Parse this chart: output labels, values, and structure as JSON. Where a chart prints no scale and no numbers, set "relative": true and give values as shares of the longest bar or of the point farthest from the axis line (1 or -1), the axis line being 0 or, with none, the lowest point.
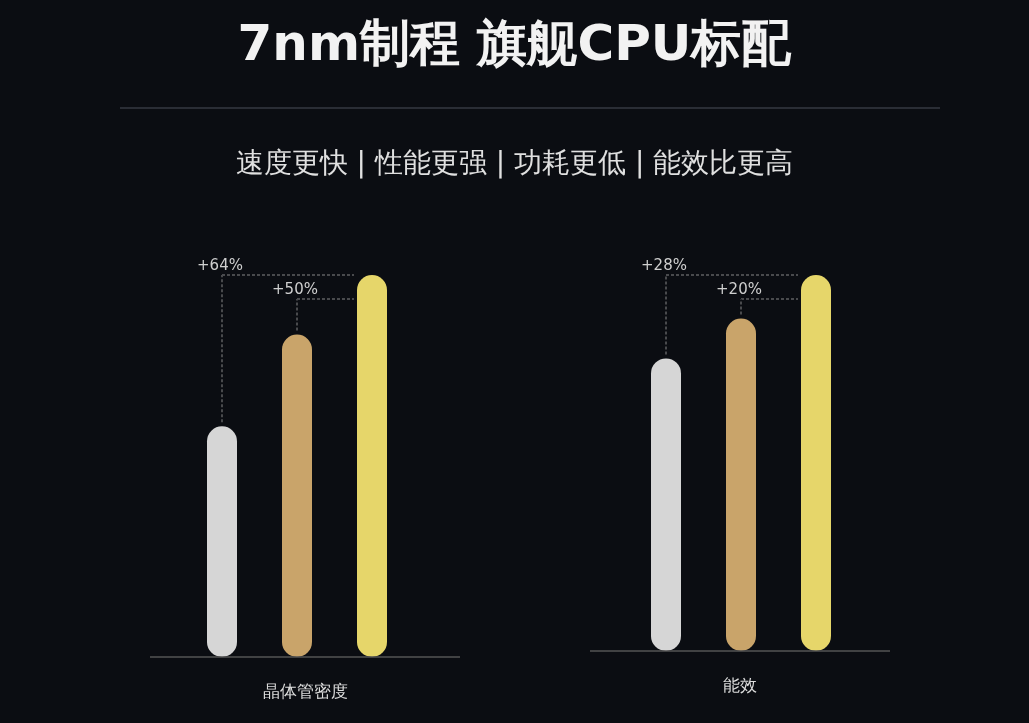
{
  "chart_data": [
    {
      "type": "bar",
      "title": "7nm制程  旗舰CPU标配",
      "subtitle": "速度更快 | 性能更强 | 功耗更低 | 能效比更高",
      "xlabel": "晶体管密度",
      "relative": true,
      "categories": [
        null,
        null,
        null
      ],
      "values": [
        0.604,
        0.844,
        1
      ],
      "colors": [
        "#d6d6d6",
        "#c9a46a",
        "#e6d66a"
      ],
      "annotations": [
        "+64%",
        "+50%"
      ]
    },
    {
      "type": "bar",
      "xlabel": "能效",
      "relative": true,
      "categories": [
        null,
        null,
        null
      ],
      "values": [
        0.778,
        0.884,
        1
      ],
      "colors": [
        "#d6d6d6",
        "#c9a46a",
        "#e6d66a"
      ],
      "annotations": [
        "+28%",
        "+20%"
      ]
    }
  ]
}
